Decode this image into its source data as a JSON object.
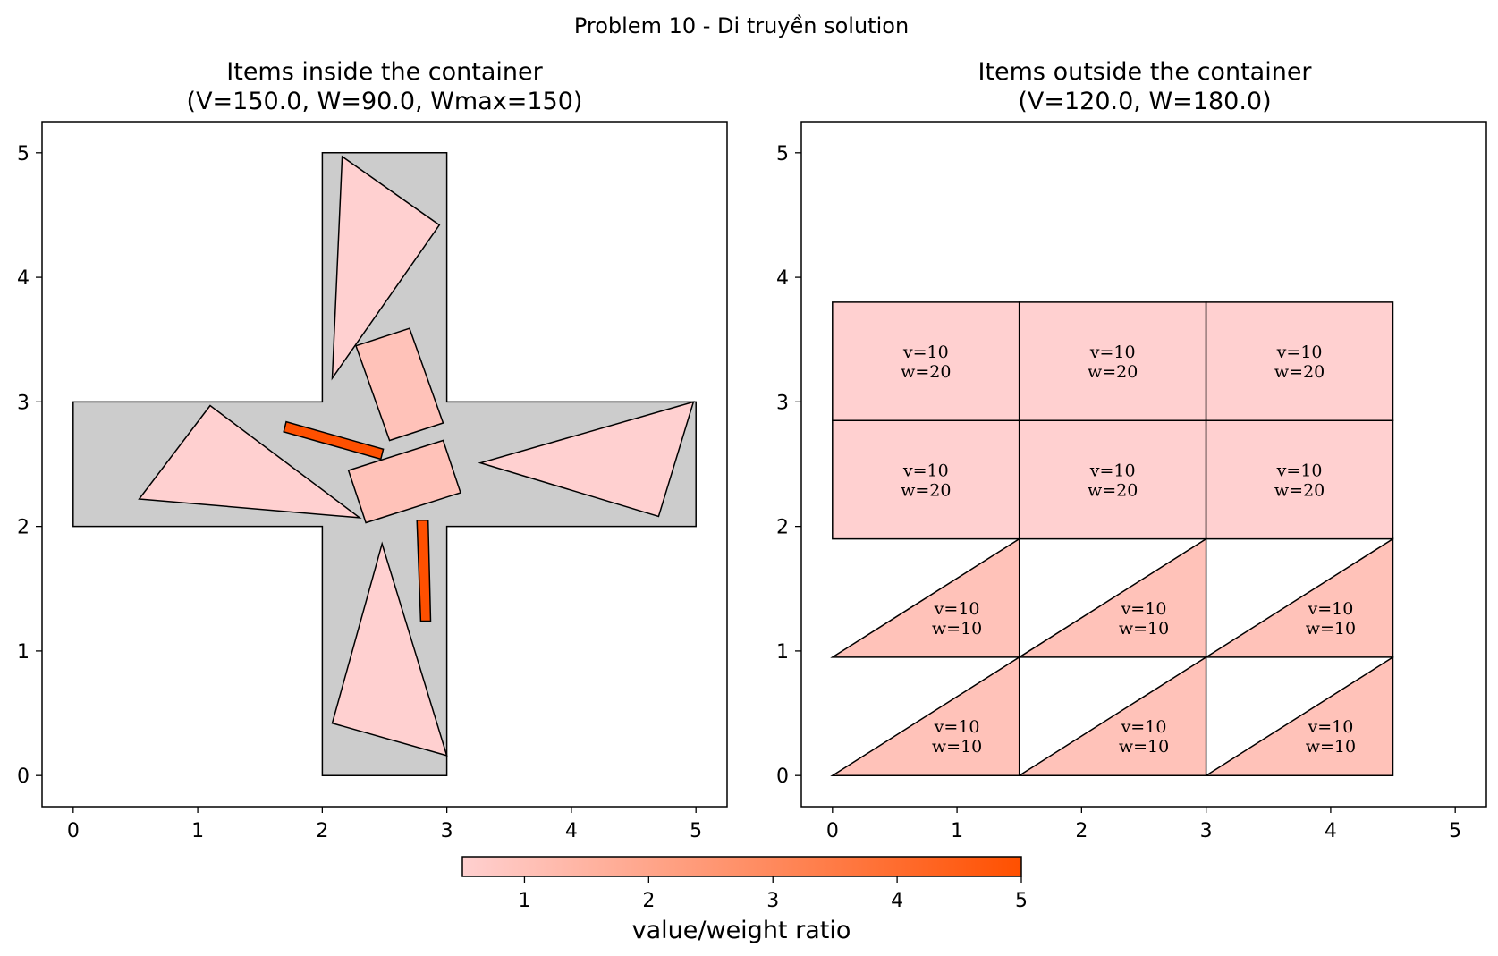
{
  "suptitle": "Problem 10 - Di truyền solution",
  "chart_data": [
    {
      "type": "scatter",
      "title_line1": "Items inside the container",
      "title_line2": "(V=150.0, W=90.0, Wmax=150)",
      "xlim": [
        -0.25,
        5.25
      ],
      "ylim": [
        -0.25,
        5.25
      ],
      "xticks": [
        0,
        1,
        2,
        3,
        4,
        5
      ],
      "yticks": [
        0,
        1,
        2,
        3,
        4,
        5
      ],
      "grid": false,
      "container": {
        "fill": "#cccccc",
        "points": [
          [
            2,
            0
          ],
          [
            3,
            0
          ],
          [
            3,
            2
          ],
          [
            5,
            2
          ],
          [
            5,
            3
          ],
          [
            3,
            3
          ],
          [
            3,
            5
          ],
          [
            2,
            5
          ],
          [
            2,
            3
          ],
          [
            0,
            3
          ],
          [
            0,
            2
          ],
          [
            2,
            2
          ]
        ]
      },
      "items": [
        {
          "name": "triangle-top",
          "ratio": 0.5,
          "points": [
            [
              2.16,
              4.97
            ],
            [
              2.94,
              4.42
            ],
            [
              2.08,
              3.19
            ]
          ]
        },
        {
          "name": "triangle-left",
          "ratio": 0.5,
          "points": [
            [
              1.1,
              2.97
            ],
            [
              0.53,
              2.22
            ],
            [
              2.3,
              2.07
            ]
          ]
        },
        {
          "name": "triangle-right",
          "ratio": 0.5,
          "points": [
            [
              4.98,
              3.0
            ],
            [
              3.27,
              2.51
            ],
            [
              4.7,
              2.08
            ]
          ]
        },
        {
          "name": "triangle-bottom",
          "ratio": 0.5,
          "points": [
            [
              2.48,
              1.86
            ],
            [
              2.08,
              0.42
            ],
            [
              3.0,
              0.16
            ]
          ]
        },
        {
          "name": "rectangle-upper",
          "ratio": 1.0,
          "points": [
            [
              2.27,
              3.45
            ],
            [
              2.7,
              3.59
            ],
            [
              2.97,
              2.83
            ],
            [
              2.54,
              2.69
            ]
          ]
        },
        {
          "name": "rectangle-middle",
          "ratio": 1.0,
          "points": [
            [
              2.21,
              2.45
            ],
            [
              2.97,
              2.69
            ],
            [
              3.11,
              2.27
            ],
            [
              2.35,
              2.03
            ]
          ]
        },
        {
          "name": "bar-diagonal",
          "ratio": 5.0,
          "points": [
            [
              1.71,
              2.84
            ],
            [
              2.49,
              2.62
            ],
            [
              2.47,
              2.54
            ],
            [
              1.69,
              2.76
            ]
          ]
        },
        {
          "name": "bar-vertical",
          "ratio": 5.0,
          "points": [
            [
              2.76,
              2.05
            ],
            [
              2.85,
              2.05
            ],
            [
              2.87,
              1.24
            ],
            [
              2.79,
              1.24
            ]
          ]
        }
      ]
    },
    {
      "type": "scatter",
      "title_line1": "Items outside the container",
      "title_line2": "(V=120.0, W=180.0)",
      "xlim": [
        -0.25,
        5.25
      ],
      "ylim": [
        -0.25,
        5.25
      ],
      "xticks": [
        0,
        1,
        2,
        3,
        4,
        5
      ],
      "yticks": [
        0,
        1,
        2,
        3,
        4,
        5
      ],
      "grid": false,
      "items": [
        {
          "name": "rect-r1c1",
          "ratio": 0.5,
          "points": [
            [
              0,
              2.85
            ],
            [
              1.5,
              2.85
            ],
            [
              1.5,
              3.8
            ],
            [
              0,
              3.8
            ]
          ],
          "label": [
            "v=10",
            "w=20"
          ]
        },
        {
          "name": "rect-r1c2",
          "ratio": 0.5,
          "points": [
            [
              1.5,
              2.85
            ],
            [
              3,
              2.85
            ],
            [
              3,
              3.8
            ],
            [
              1.5,
              3.8
            ]
          ],
          "label": [
            "v=10",
            "w=20"
          ]
        },
        {
          "name": "rect-r1c3",
          "ratio": 0.5,
          "points": [
            [
              3,
              2.85
            ],
            [
              4.5,
              2.85
            ],
            [
              4.5,
              3.8
            ],
            [
              3,
              3.8
            ]
          ],
          "label": [
            "v=10",
            "w=20"
          ]
        },
        {
          "name": "rect-r2c1",
          "ratio": 0.5,
          "points": [
            [
              0,
              1.9
            ],
            [
              1.5,
              1.9
            ],
            [
              1.5,
              2.85
            ],
            [
              0,
              2.85
            ]
          ],
          "label": [
            "v=10",
            "w=20"
          ]
        },
        {
          "name": "rect-r2c2",
          "ratio": 0.5,
          "points": [
            [
              1.5,
              1.9
            ],
            [
              3,
              1.9
            ],
            [
              3,
              2.85
            ],
            [
              1.5,
              2.85
            ]
          ],
          "label": [
            "v=10",
            "w=20"
          ]
        },
        {
          "name": "rect-r2c3",
          "ratio": 0.5,
          "points": [
            [
              3,
              1.9
            ],
            [
              4.5,
              1.9
            ],
            [
              4.5,
              2.85
            ],
            [
              3,
              2.85
            ]
          ],
          "label": [
            "v=10",
            "w=20"
          ]
        },
        {
          "name": "tri-r1c1",
          "ratio": 1.0,
          "points": [
            [
              0,
              0.95
            ],
            [
              1.5,
              1.9
            ],
            [
              1.5,
              0.95
            ]
          ],
          "label": [
            "v=10",
            "w=10"
          ]
        },
        {
          "name": "tri-r1c2",
          "ratio": 1.0,
          "points": [
            [
              1.5,
              0.95
            ],
            [
              3,
              1.9
            ],
            [
              3,
              0.95
            ]
          ],
          "label": [
            "v=10",
            "w=10"
          ]
        },
        {
          "name": "tri-r1c3",
          "ratio": 1.0,
          "points": [
            [
              3,
              0.95
            ],
            [
              4.5,
              1.9
            ],
            [
              4.5,
              0.95
            ]
          ],
          "label": [
            "v=10",
            "w=10"
          ]
        },
        {
          "name": "tri-r2c1",
          "ratio": 1.0,
          "points": [
            [
              0,
              0
            ],
            [
              1.5,
              0.95
            ],
            [
              1.5,
              0
            ]
          ],
          "label": [
            "v=10",
            "w=10"
          ]
        },
        {
          "name": "tri-r2c2",
          "ratio": 1.0,
          "points": [
            [
              1.5,
              0
            ],
            [
              3,
              0.95
            ],
            [
              3,
              0
            ]
          ],
          "label": [
            "v=10",
            "w=10"
          ]
        },
        {
          "name": "tri-r2c3",
          "ratio": 1.0,
          "points": [
            [
              3,
              0
            ],
            [
              4.5,
              0.95
            ],
            [
              4.5,
              0
            ]
          ],
          "label": [
            "v=10",
            "w=10"
          ]
        }
      ]
    }
  ],
  "colorbar": {
    "label": "value/weight ratio",
    "min": 0.5,
    "max": 5,
    "ticks": [
      1,
      2,
      3,
      4,
      5
    ],
    "color_low": "#ffd0d0",
    "color_high": "#ff5000"
  }
}
